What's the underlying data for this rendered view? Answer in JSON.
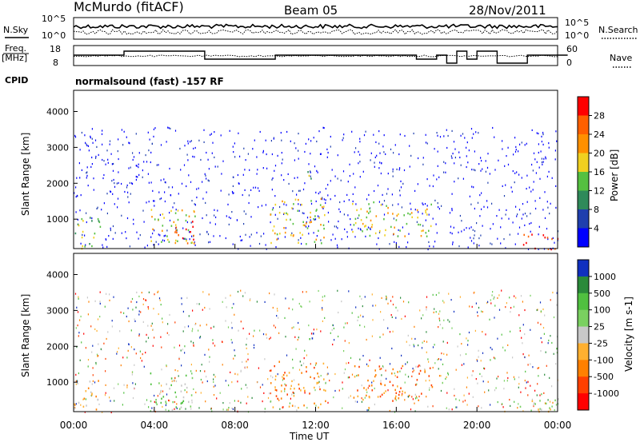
{
  "header": {
    "site": "McMurdo (fitACF)",
    "beam": "Beam 05",
    "date": "28/Nov/2011"
  },
  "strip_labels": {
    "nsky": "N.Sky",
    "nsky_ticks": [
      "10^5",
      "10^0"
    ],
    "nsearch": "N.Search",
    "nsearch_ticks": [
      "10^5",
      "10^0"
    ],
    "freq_line1": "Freq.",
    "freq_line2": "[MHz]",
    "freq_ticks": [
      "18",
      "8"
    ],
    "nave": "Nave",
    "nave_ticks": [
      "60",
      "0"
    ],
    "cpid": "CPID",
    "cpid_text": "normalsound (fast) -157 RF"
  },
  "chart_data": [
    {
      "type": "heatmap",
      "title": "",
      "ylabel": "Slant Range [km]",
      "xlabel": "",
      "ylim": [
        180,
        4590
      ],
      "yticks": [
        "1000",
        "2000",
        "3000",
        "4000"
      ],
      "colorbar_label": "Power [dB]",
      "colorbar_ticks": [
        "4",
        "8",
        "12",
        "16",
        "20",
        "24",
        "28"
      ],
      "colors": [
        "#0000ff",
        "#1f3fae",
        "#2f8a5a",
        "#55c040",
        "#f0d020",
        "#ff9000",
        "#ff6000",
        "#ff0000"
      ],
      "scatter_regions_hours": [
        {
          "t0": 0.0,
          "t1": 1.3,
          "r0": 200,
          "r1": 1100,
          "level": 3
        },
        {
          "t0": 3.7,
          "t1": 6.0,
          "r0": 250,
          "r1": 1300,
          "level": 4
        },
        {
          "t0": 5.0,
          "t1": 6.0,
          "r0": 300,
          "r1": 1000,
          "level": 7
        },
        {
          "t0": 9.6,
          "t1": 12.5,
          "r0": 300,
          "r1": 1600,
          "level": 4
        },
        {
          "t0": 11.4,
          "t1": 12.0,
          "r0": 2100,
          "r1": 2400,
          "level": 3
        },
        {
          "t0": 13.8,
          "t1": 17.8,
          "r0": 500,
          "r1": 1500,
          "level": 4
        },
        {
          "t0": 22.0,
          "t1": 24.0,
          "r0": 180,
          "r1": 600,
          "level": 7
        }
      ]
    },
    {
      "type": "heatmap",
      "title": "",
      "ylabel": "Slant Range [km]",
      "xlabel": "Time UT",
      "ylim": [
        180,
        4590
      ],
      "yticks": [
        "1000",
        "2000",
        "3000",
        "4000"
      ],
      "xticks": [
        "00:00",
        "04:00",
        "08:00",
        "12:00",
        "16:00",
        "20:00",
        "00:00"
      ],
      "colorbar_label": "Velocity [m s-1]",
      "colorbar_ticks": [
        "1000",
        "500",
        "100",
        "25",
        "-25",
        "-100",
        "-500",
        "-1000"
      ],
      "colors": [
        "#1030c0",
        "#2a8a3a",
        "#50c040",
        "#7ad060",
        "#c8c8c8",
        "#ffb030",
        "#ff8000",
        "#ff4000",
        "#ff0000"
      ],
      "scatter_regions_hours": [
        {
          "t0": 0.0,
          "t1": 1.3,
          "r0": 200,
          "r1": 1100,
          "level": 5
        },
        {
          "t0": 3.7,
          "t1": 6.0,
          "r0": 250,
          "r1": 1300,
          "level": 3
        },
        {
          "t0": 9.6,
          "t1": 12.5,
          "r0": 300,
          "r1": 1600,
          "level": 6
        },
        {
          "t0": 11.4,
          "t1": 12.0,
          "r0": 2100,
          "r1": 2400,
          "level": 1
        },
        {
          "t0": 13.8,
          "t1": 17.8,
          "r0": 500,
          "r1": 1500,
          "level": 6
        },
        {
          "t0": 22.0,
          "t1": 24.0,
          "r0": 180,
          "r1": 600,
          "level": 4
        }
      ]
    }
  ]
}
